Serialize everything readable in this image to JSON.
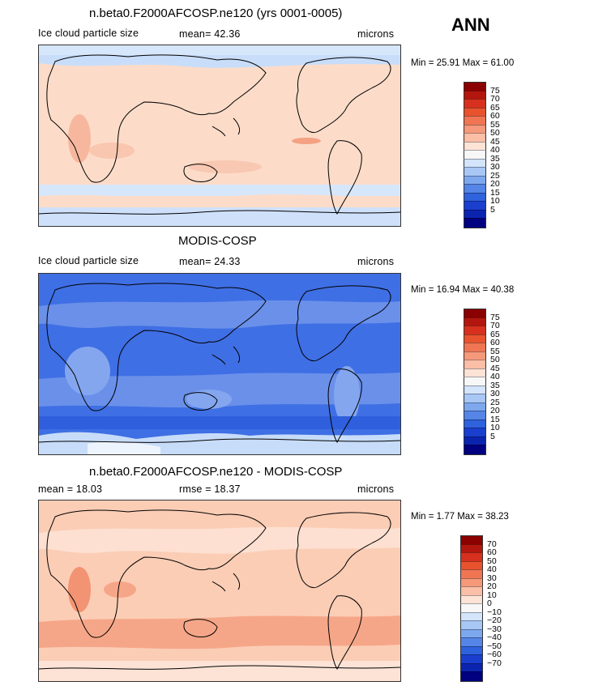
{
  "header": {
    "season": "ANN"
  },
  "chart_data": [
    {
      "type": "heatmap",
      "title": "n.beta0.F2000AFCOSP.ne120 (yrs 0001-0005)",
      "left_label": "Ice cloud particle size",
      "middle_label": "mean=  42.36",
      "units": "microns",
      "min_max": "Min =   25.91  Max =   61.00",
      "colorbar": {
        "ticks": [
          "75",
          "70",
          "65",
          "60",
          "55",
          "50",
          "45",
          "40",
          "35",
          "30",
          "25",
          "20",
          "15",
          "10",
          "5"
        ],
        "colors": [
          "#8b0000",
          "#b3160e",
          "#d7301f",
          "#e8532e",
          "#f07553",
          "#f6987a",
          "#fbbea6",
          "#fde3d6",
          "#f7f7f7",
          "#d4e4fb",
          "#a8c7f5",
          "#7ea8ee",
          "#5585e6",
          "#2f62dd",
          "#1a3fce",
          "#0b24b0",
          "#000080"
        ]
      },
      "map_fill": "#fcdcc9"
    },
    {
      "type": "heatmap",
      "title": "MODIS-COSP",
      "left_label": "Ice cloud particle size",
      "middle_label": "mean=  24.33",
      "units": "microns",
      "min_max": "Min =   16.94  Max =   40.38",
      "colorbar": {
        "ticks": [
          "75",
          "70",
          "65",
          "60",
          "55",
          "50",
          "45",
          "40",
          "35",
          "30",
          "25",
          "20",
          "15",
          "10",
          "5"
        ],
        "colors": [
          "#8b0000",
          "#b3160e",
          "#d7301f",
          "#e8532e",
          "#f07553",
          "#f6987a",
          "#fbbea6",
          "#fde3d6",
          "#f7f7f7",
          "#d4e4fb",
          "#a8c7f5",
          "#7ea8ee",
          "#5585e6",
          "#2f62dd",
          "#1a3fce",
          "#0b24b0",
          "#000080"
        ]
      },
      "map_fill": "#3f6fe4"
    },
    {
      "type": "heatmap",
      "title": "n.beta0.F2000AFCOSP.ne120 - MODIS-COSP",
      "left_label": "mean =   18.03",
      "middle_label": "rmse =   18.37",
      "units": "microns",
      "min_max": "Min =    1.77  Max =   38.23",
      "colorbar": {
        "ticks": [
          "70",
          "60",
          "50",
          "40",
          "30",
          "20",
          "10",
          "0",
          "−10",
          "−20",
          "−30",
          "−40",
          "−50",
          "−60",
          "−70"
        ],
        "colors": [
          "#8b0000",
          "#b3160e",
          "#d7301f",
          "#e8532e",
          "#f07553",
          "#f6987a",
          "#fbbea6",
          "#fde3d6",
          "#f7f7f7",
          "#d4e4fb",
          "#a8c7f5",
          "#7ea8ee",
          "#5585e6",
          "#2f62dd",
          "#1a3fce",
          "#0b24b0",
          "#000080"
        ]
      },
      "map_fill": "#fbcdb5"
    }
  ]
}
